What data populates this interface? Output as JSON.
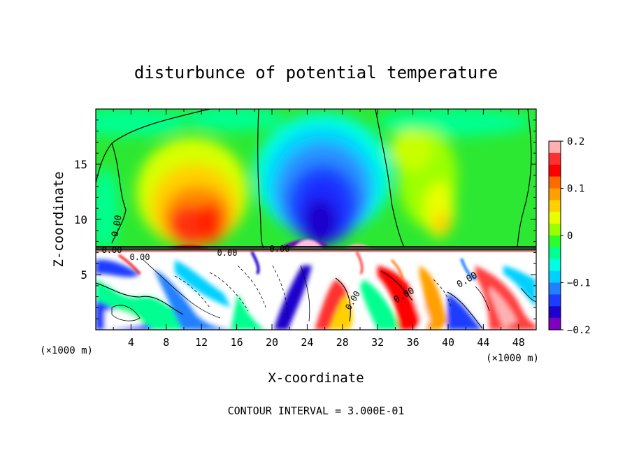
{
  "chart_data": {
    "type": "heatmap",
    "title": "disturbunce of potential temperature",
    "xlabel": "X-coordinate",
    "ylabel": "Z-coordinate",
    "x_unit": "(×1000 m)",
    "z_unit": "(×1000 m)",
    "footer": "CONTOUR INTERVAL = 3.000E-01",
    "contour_interval": 0.3,
    "xlim": [
      0,
      50
    ],
    "zlim": [
      0,
      20
    ],
    "x_ticks": [
      4,
      8,
      12,
      16,
      20,
      24,
      28,
      32,
      36,
      40,
      44,
      48
    ],
    "x_tick_labels": [
      "4",
      "8",
      "12",
      "16",
      "20",
      "24",
      "28",
      "32",
      "36",
      "40",
      "44",
      "48"
    ],
    "z_ticks": [
      5,
      10,
      15
    ],
    "z_tick_labels": [
      "5",
      "10",
      "15"
    ],
    "colorbar": {
      "range": [
        -0.2,
        0.2
      ],
      "ticks": [
        0.2,
        0.1,
        0,
        -0.1,
        -0.2
      ],
      "tick_labels": [
        "0.2",
        "0.1",
        "0",
        "−0.1",
        "−0.2"
      ],
      "colors": [
        "#ffb0b0",
        "#ff3030",
        "#ff0000",
        "#ff6a00",
        "#ffa000",
        "#ffd000",
        "#e8ff00",
        "#9cff00",
        "#2cff2c",
        "#00ff90",
        "#00ffe0",
        "#00d0ff",
        "#2080ff",
        "#1e3cff",
        "#1e00cc",
        "#8000c0"
      ]
    },
    "contour_labels": [
      "0.00",
      "0.00",
      "0.00",
      "0.00",
      "0.00",
      "0.00",
      "0.00",
      "0.00"
    ],
    "features": [
      {
        "name": "warm anomaly",
        "x": 11,
        "z": 10.5,
        "value": 0.15
      },
      {
        "name": "cold anomaly",
        "x": 25,
        "z": 11,
        "value": -0.15
      },
      {
        "name": "weak warm",
        "x": 39,
        "z": 11,
        "value": 0.06
      },
      {
        "name": "interface",
        "z": 7.3
      }
    ]
  }
}
